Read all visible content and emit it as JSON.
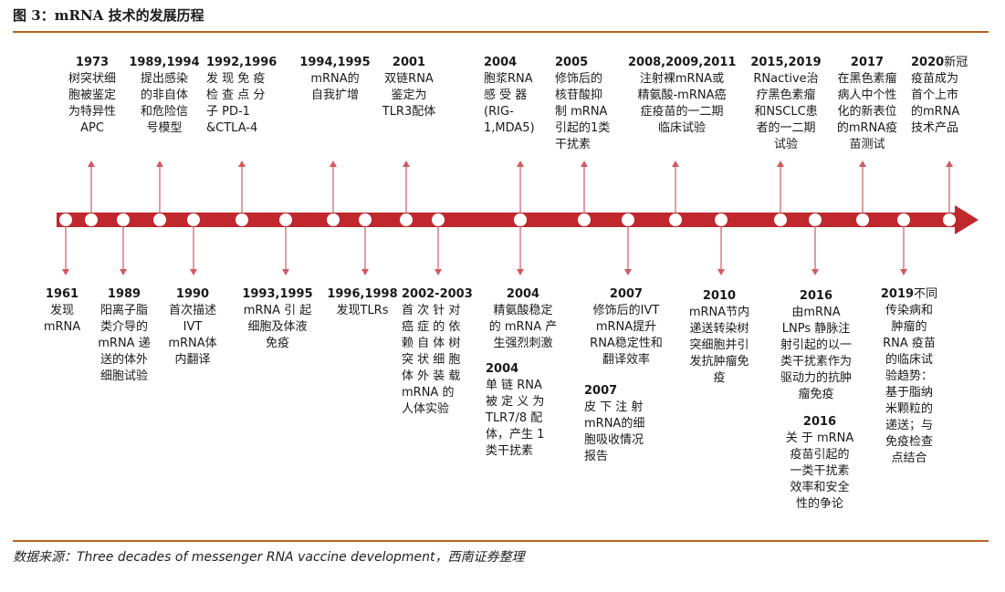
{
  "title": "图 3：mRNA 技术的发展历程",
  "source": "数据来源：Three decades of messenger RNA vaccine development，西南证券整理",
  "colors": {
    "axis": "#c0282d",
    "arrow": "#d25a5e",
    "rule": "#b5631c"
  },
  "events_top": [
    {
      "year": "1973",
      "text": "树突状细\n胞被鉴定\n为特异性\nAPC"
    },
    {
      "year": "1989,1994",
      "text": "提出感染\n的非自体\n和危险信\n号模型"
    },
    {
      "year": "1992,1996",
      "text": "发 现 免 疫\n检 查 点 分\n子      PD-1\n&CTLA-4"
    },
    {
      "year": "1994,1995",
      "text": "mRNA的\n自我扩增"
    },
    {
      "year": "2001",
      "text": "双链RNA\n鉴定为\nTLR3配体"
    },
    {
      "year": "2004",
      "text": "胞浆RNA\n感 受 器\n(RIG-\n1,MDA5)"
    },
    {
      "year": "2005",
      "text": "修饰后的\n核苷酸抑\n制 mRNA\n引起的1类\n干扰素"
    },
    {
      "year": "2008,2009,2011",
      "text": "注射裸mRNA或\n精氨酸-mRNA癌\n症疫苗的一二期\n临床试验"
    },
    {
      "year": "2015,2019",
      "text": "RNactive治\n疗黑色素瘤\n和NSCLC患\n者的一二期\n试验"
    },
    {
      "year": "2017",
      "text": "在黑色素瘤\n病人中个性\n化的新表位\n的mRNA疫\n苗测试"
    },
    {
      "year": "2020",
      "text": "新冠\n疫苗成为\n首个上市\n的mRNA\n技术产品"
    }
  ],
  "events_bottom": [
    {
      "year": "1961",
      "text": "发现\nmRNA"
    },
    {
      "year": "1989",
      "text": "阳离子脂\n类介导的\nmRNA 递\n送的体外\n细胞试验"
    },
    {
      "year": "1990",
      "text": "首次描述\nIVT\nmRNA体\n内翻译"
    },
    {
      "year": "1993,1995",
      "text": "mRNA 引 起\n细胞及体液\n免疫"
    },
    {
      "year": "1996,1998",
      "text": "发现TLRs"
    },
    {
      "year": "2002-2003",
      "text": "首 次 针 对\n癌 症 的 依\n赖 自 体 树\n突 状 细 胞\n体 外 装 载\nmRNA   的\n人体实验"
    },
    {
      "year": "2004",
      "text": "精氨酸稳定\n的 mRNA 产\n生强烈刺激"
    },
    {
      "year": "2004",
      "text": "单 链 RNA\n被 定 义 为\nTLR7/8 配\n体，产生 1\n类干扰素"
    },
    {
      "year": "2007",
      "text": "修饰后的IVT\nmRNA提升\nRNA稳定性和\n翻译效率"
    },
    {
      "year": "2007",
      "text": "皮 下 注 射\nmRNA的细\n胞吸收情况\n报告"
    },
    {
      "year": "2010",
      "text": "mRNA节内\n递送转染树\n突细胞并引\n发抗肿瘤免\n疫"
    },
    {
      "year": "2016",
      "text": "由mRNA\nLNPs 静脉注\n射引起的以一\n类干扰素作为\n驱动力的抗肿\n瘤免疫"
    },
    {
      "year": "2016",
      "text": "关 于 mRNA\n疫苗引起的\n一类干扰素\n效率和安全\n性的争论"
    },
    {
      "year": "2019",
      "text": "不同\n传染病和\n肿瘤的\nRNA 疫苗\n的临床试\n验趋势：\n基于脂纳\n米颗粒的\n递送；与\n免疫检查\n点结合"
    }
  ]
}
